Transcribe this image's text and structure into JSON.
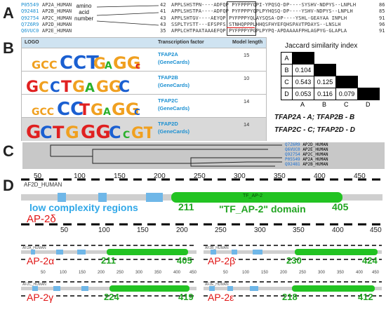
{
  "panels": {
    "a": "A",
    "b": "B",
    "c": "C",
    "d": "D"
  },
  "alignment": {
    "note": [
      "amino",
      "acid",
      "number"
    ],
    "rows": [
      {
        "accession": "P05549",
        "name": "AP2A_HUMAN",
        "start": "42",
        "seq": "APPLSHSTPN----ADFQP PYFPPPYQPI-YPQSQ-DP----SYSHV-NDPYS--LNPLH",
        "end": "86"
      },
      {
        "accession": "Q92481",
        "name": "AP2B_HUMAN",
        "start": "41",
        "seq": "APPLSHSTPA----ADFQP PYFPPPYQPLPYHQSQ-DP----YSHV-NDPYS--LNPLH",
        "end": "85"
      },
      {
        "accession": "Q92754",
        "name": "AP2C_HUMAN",
        "start": "43",
        "seq": "APPLSHTGV----AEYQP PYFPPPYQLAYSQSA-DP----YSHL-GEAYAA INPLH",
        "end": "91"
      },
      {
        "accession": "Q7Z6R9",
        "name": "AP2D_HUMAN",
        "start": "43",
        "seq": "SSPLTYSTT---EFSPFS STNHQPPPLHHQSFHYEFQHSPAVTPDAYS--LNSLH",
        "end": "96"
      },
      {
        "accession": "Q6VUC0",
        "name": "AP2E_HUMAN",
        "start": "35",
        "seq": "APPLCHTPAATAAAEFQP PYFPPPYPGPLPYPQ-APDAAAAFPHLAGPYG-GLAPLA",
        "end": "91"
      }
    ]
  },
  "table": {
    "headers": {
      "logo": "LOGO",
      "tf": "Transcription factor",
      "ml": "Model length"
    },
    "rows": [
      {
        "tf": "TFAP2A",
        "gc": "(GeneCards)",
        "ml": "15"
      },
      {
        "tf": "TFAP2B",
        "gc": "(GeneCards)",
        "ml": "10"
      },
      {
        "tf": "TFAP2C",
        "gc": "(GeneCards)",
        "ml": "14"
      },
      {
        "tf": "TFAP2D",
        "gc": "(GeneCards)",
        "ml": "14"
      }
    ]
  },
  "jaccard": {
    "title": "Jaccard similarity index",
    "labels": [
      "A",
      "B",
      "C",
      "D"
    ],
    "values": {
      "BA": "0.104",
      "CA": "0.543",
      "CB": "0.125",
      "DA": "0.053",
      "DB": "0.116",
      "DC": "0.079"
    },
    "key": [
      "TFAP2A - A; TFAP2B - B",
      "TFAP2C - C; TFAP2D - D"
    ]
  },
  "tree": {
    "leaves": [
      {
        "acc": "Q7Z6R9",
        "name": "AP2D_HUMAN"
      },
      {
        "acc": "Q6VUC0",
        "name": "AP2E_HUMAN"
      },
      {
        "acc": "Q92754",
        "name": "AP2C_HUMAN"
      },
      {
        "acc": "P05549",
        "name": "AP2A_HUMAN"
      },
      {
        "acc": "Q92481",
        "name": "AP2B_HUMAN"
      }
    ]
  },
  "domain_big": {
    "track_label": "AF2D_HUMAN",
    "name": "AP-2δ",
    "domain_label": "TF_AP-2",
    "lcr_text": "low complexity regions",
    "domain_text": "\"TF_AP-2\" domain",
    "start": "211",
    "end": "405",
    "ticks_top": [
      "50",
      "100",
      "150",
      "200",
      "250",
      "300",
      "350",
      "400",
      "450"
    ],
    "ticks_bottom": [
      "50",
      "100",
      "150",
      "200",
      "250",
      "300",
      "350",
      "400",
      "450"
    ]
  },
  "domain_small": [
    {
      "name": "AP-2α",
      "track": "AF2A_HUMAN",
      "start": "211",
      "end": "405"
    },
    {
      "name": "AP-2β",
      "track": "AF2B_HUMAN",
      "start": "230",
      "end": "424"
    },
    {
      "name": "AP-2γ",
      "track": "AF2C_HUMAN",
      "start": "224",
      "end": "419"
    },
    {
      "name": "AP-2ε",
      "track": "AF2E_HUMAN",
      "start": "218",
      "end": "412"
    }
  ],
  "small_ticks": [
    "50",
    "100",
    "150",
    "200",
    "250",
    "300",
    "350",
    "400",
    "450"
  ],
  "colors": {
    "accent_blue": "#1a8fd1",
    "domain_green": "#22c322",
    "red": "#e01414",
    "lcr": "#6fb7e8"
  }
}
